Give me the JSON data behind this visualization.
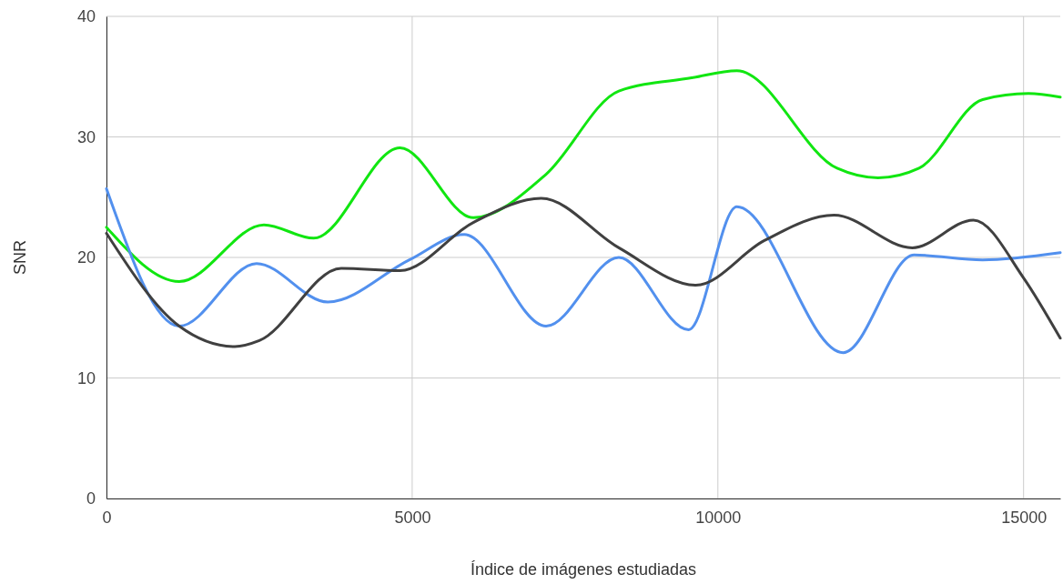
{
  "chart_data": {
    "type": "line",
    "xlabel": "Índice de imágenes estudiadas",
    "ylabel": "SNR",
    "xlim": [
      0,
      15600
    ],
    "xticks": [
      0,
      5000,
      10000,
      15000
    ],
    "ylim": [
      0,
      40
    ],
    "yticks": [
      0,
      10,
      20,
      30,
      40
    ],
    "grid": true,
    "line_style": "solid",
    "series": [
      {
        "color": "#11e611",
        "x": [
          0,
          1190,
          2575,
          3390,
          4800,
          6000,
          7190,
          8380,
          9570,
          10310,
          11950,
          12620,
          13290,
          14330,
          15080,
          15600
        ],
        "values": [
          22.5,
          18.0,
          22.7,
          21.6,
          29.1,
          23.3,
          26.9,
          33.8,
          34.9,
          35.5,
          27.4,
          26.6,
          27.4,
          33.1,
          33.6,
          33.3
        ]
      },
      {
        "color": "#5290ee",
        "x": [
          0,
          1190,
          2455,
          3620,
          4955,
          5850,
          7190,
          8380,
          9520,
          10310,
          12050,
          13210,
          14330,
          15600
        ],
        "values": [
          25.7,
          14.3,
          19.5,
          16.3,
          19.8,
          21.9,
          14.3,
          20.0,
          14.0,
          24.2,
          12.1,
          20.2,
          19.8,
          20.4
        ]
      },
      {
        "color": "#404040",
        "x": [
          0,
          1190,
          2100,
          2500,
          3840,
          4800,
          6000,
          7110,
          8380,
          9640,
          10760,
          11900,
          13180,
          14180,
          15000,
          15600
        ],
        "values": [
          22.0,
          14.3,
          12.6,
          13.1,
          19.1,
          18.9,
          22.9,
          24.9,
          20.8,
          17.7,
          21.4,
          23.5,
          20.8,
          23.1,
          18.3,
          13.3
        ]
      }
    ]
  }
}
